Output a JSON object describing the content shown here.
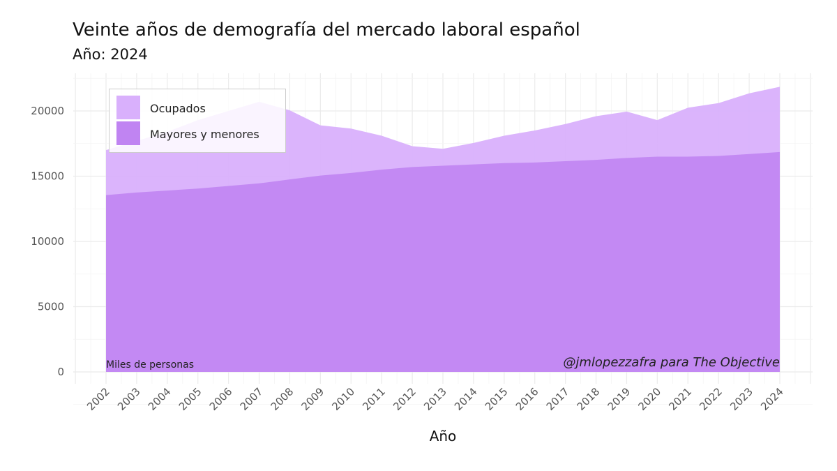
{
  "chart_data": {
    "type": "area",
    "title": "Veinte años de demografía del mercado laboral español",
    "subtitle": "Año: 2024",
    "xlabel": "Año",
    "ylabel": "",
    "x": [
      2002,
      2003,
      2004,
      2005,
      2006,
      2007,
      2008,
      2009,
      2010,
      2011,
      2012,
      2013,
      2014,
      2015,
      2016,
      2017,
      2018,
      2019,
      2020,
      2021,
      2022,
      2023,
      2024
    ],
    "ylim": [
      0,
      22500
    ],
    "yticks": [
      0,
      5000,
      10000,
      15000,
      20000
    ],
    "grid": true,
    "legend_position": "top-left",
    "series": [
      {
        "name": "Ocupados",
        "color": "#d9b0fc",
        "values": [
          17000,
          17700,
          18400,
          19300,
          20000,
          20700,
          20050,
          18900,
          18650,
          18100,
          17300,
          17100,
          17550,
          18100,
          18500,
          19000,
          19600,
          19950,
          19300,
          20250,
          20600,
          21350,
          21850
        ]
      },
      {
        "name": "Mayores y menores",
        "color": "#c084f2",
        "values": [
          13550,
          13750,
          13900,
          14050,
          14250,
          14450,
          14750,
          15050,
          15250,
          15500,
          15700,
          15800,
          15900,
          16000,
          16050,
          16150,
          16250,
          16400,
          16500,
          16500,
          16550,
          16700,
          16850
        ]
      }
    ],
    "annotations": {
      "units": "Miles de personas",
      "credit": "@jmlopezzafra para The Objective"
    }
  }
}
